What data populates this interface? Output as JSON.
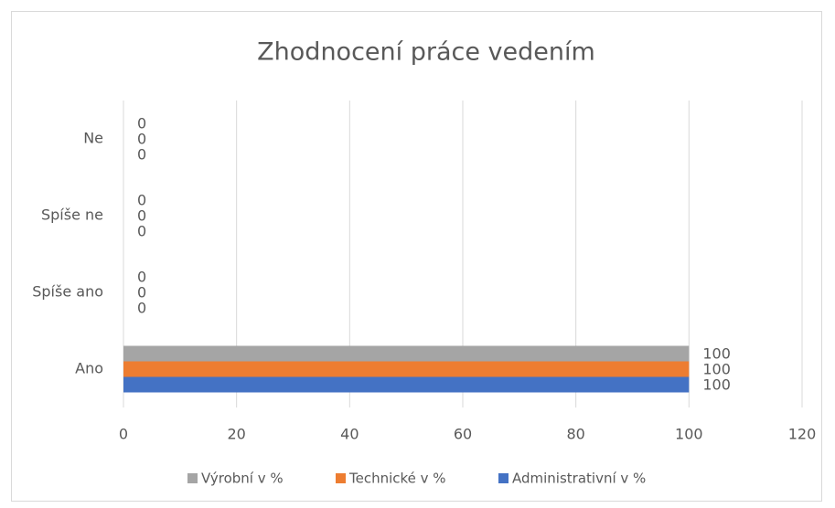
{
  "chart_data": {
    "type": "barh",
    "title": "Zhodnocení práce vedením",
    "categories": [
      "Ano",
      "Spíše ano",
      "Spíše ne",
      "Ne"
    ],
    "series": [
      {
        "name": "Výrobní v %",
        "color": "#a5a5a5",
        "values": [
          100,
          0,
          0,
          0
        ]
      },
      {
        "name": "Technické v %",
        "color": "#ed7d31",
        "values": [
          100,
          0,
          0,
          0
        ]
      },
      {
        "name": "Administrativní v %",
        "color": "#4472c4",
        "values": [
          100,
          0,
          0,
          0
        ]
      }
    ],
    "xlim": [
      0,
      120
    ],
    "xticks": [
      0,
      20,
      40,
      60,
      80,
      100,
      120
    ],
    "grid": true,
    "legend": "bottom"
  }
}
